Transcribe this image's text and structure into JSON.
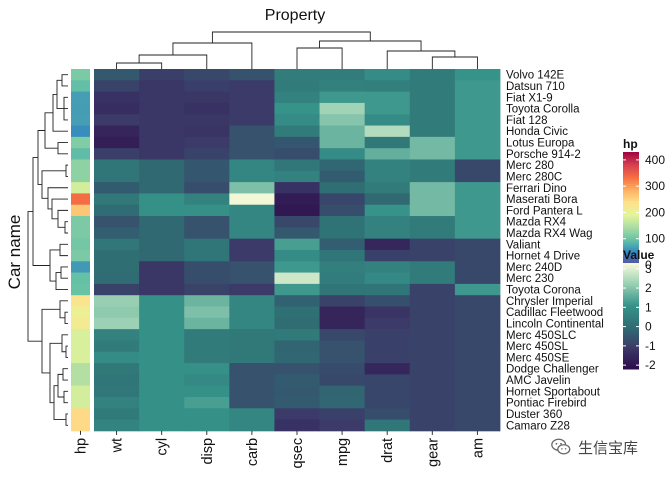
{
  "chart_data": {
    "type": "heatmap",
    "title": "Property",
    "ylabel": "Car name",
    "columns": [
      "wt",
      "cyl",
      "disp",
      "carb",
      "qsec",
      "mpg",
      "drat",
      "gear",
      "am"
    ],
    "annotation_column": "hp",
    "rows": [
      {
        "name": "Volvo 142E",
        "hp": 109,
        "values": [
          -0.45,
          -1.0,
          -0.8,
          -0.6,
          0.45,
          0.45,
          0.9,
          0.4,
          1.1
        ]
      },
      {
        "name": "Datsun 710",
        "hp": 93,
        "values": [
          -0.9,
          -1.2,
          -1.0,
          -1.1,
          0.4,
          0.55,
          0.5,
          0.4,
          1.2
        ]
      },
      {
        "name": "Fiat X1-9",
        "hp": 66,
        "values": [
          -1.3,
          -1.2,
          -1.2,
          -1.1,
          0.6,
          1.2,
          1.2,
          0.4,
          1.2
        ]
      },
      {
        "name": "Toyota Corolla",
        "hp": 65,
        "values": [
          -1.4,
          -1.2,
          -1.3,
          -1.1,
          1.1,
          2.3,
          1.2,
          0.4,
          1.2
        ]
      },
      {
        "name": "Fiat 128",
        "hp": 66,
        "values": [
          -1.1,
          -1.2,
          -1.2,
          -1.1,
          0.9,
          2.0,
          0.9,
          0.4,
          1.2
        ]
      },
      {
        "name": "Honda Civic",
        "hp": 52,
        "values": [
          -1.6,
          -1.2,
          -1.25,
          -0.6,
          0.4,
          1.7,
          2.5,
          0.4,
          1.2
        ]
      },
      {
        "name": "Lotus Europa",
        "hp": 113,
        "values": [
          -1.75,
          -1.2,
          -1.1,
          -0.6,
          -0.5,
          1.7,
          0.3,
          1.8,
          1.2
        ]
      },
      {
        "name": "Porsche 914-2",
        "hp": 91,
        "values": [
          -1.0,
          -1.2,
          -0.9,
          -0.6,
          -0.7,
          0.9,
          1.6,
          1.8,
          1.2
        ]
      },
      {
        "name": "Merc 280",
        "hp": 123,
        "values": [
          0.2,
          -0.1,
          -0.5,
          0.7,
          0.25,
          -0.15,
          0.6,
          0.4,
          -0.8
        ]
      },
      {
        "name": "Merc 280C",
        "hp": 123,
        "values": [
          0.2,
          -0.1,
          -0.5,
          0.7,
          0.6,
          -0.4,
          0.6,
          0.4,
          -0.8
        ]
      },
      {
        "name": "Ferrari Dino",
        "hp": 175,
        "values": [
          -0.4,
          -0.1,
          -0.7,
          1.9,
          -1.3,
          0.0,
          0.4,
          1.8,
          1.2
        ]
      },
      {
        "name": "Maserati Bora",
        "hp": 335,
        "values": [
          0.3,
          1.0,
          0.6,
          3.2,
          -1.8,
          -0.85,
          -0.1,
          1.8,
          1.2
        ]
      },
      {
        "name": "Ford Pantera L",
        "hp": 264,
        "values": [
          -0.05,
          1.0,
          1.0,
          0.7,
          -1.9,
          -0.7,
          1.1,
          1.8,
          1.2
        ]
      },
      {
        "name": "Mazda RX4",
        "hp": 110,
        "values": [
          -0.6,
          -0.1,
          -0.6,
          0.7,
          -0.8,
          0.15,
          0.6,
          0.4,
          1.2
        ]
      },
      {
        "name": "Mazda RX4 Wag",
        "hp": 110,
        "values": [
          -0.35,
          -0.1,
          -0.6,
          0.7,
          -0.45,
          0.15,
          0.6,
          0.4,
          1.2
        ]
      },
      {
        "name": "Valiant",
        "hp": 105,
        "values": [
          0.25,
          -0.1,
          0.2,
          -1.1,
          1.3,
          -0.35,
          -1.55,
          -0.9,
          -0.8
        ]
      },
      {
        "name": "Hornet 4 Drive",
        "hp": 110,
        "values": [
          -0.0,
          -0.1,
          0.2,
          -1.1,
          0.9,
          0.2,
          -0.95,
          -0.9,
          -0.8
        ]
      },
      {
        "name": "Merc 240D",
        "hp": 62,
        "values": [
          -0.0,
          -1.2,
          -0.7,
          -0.6,
          1.2,
          0.5,
          0.6,
          0.4,
          -0.8
        ]
      },
      {
        "name": "Merc 230",
        "hp": 95,
        "values": [
          -0.05,
          -1.2,
          -0.7,
          -0.6,
          2.8,
          0.45,
          0.8,
          0.4,
          -0.8
        ]
      },
      {
        "name": "Toyota Corona",
        "hp": 97,
        "values": [
          -0.9,
          -1.2,
          -0.9,
          -1.1,
          1.2,
          0.2,
          0.2,
          -0.9,
          1.2
        ]
      },
      {
        "name": "Chrysler Imperial",
        "hp": 230,
        "values": [
          2.2,
          1.0,
          1.7,
          0.7,
          -0.25,
          -0.9,
          -0.65,
          -0.9,
          -0.8
        ]
      },
      {
        "name": "Cadillac Fleetwood",
        "hp": 205,
        "values": [
          2.1,
          1.0,
          1.9,
          0.7,
          0.07,
          -1.6,
          -1.25,
          -0.9,
          -0.8
        ]
      },
      {
        "name": "Lincoln Continental",
        "hp": 215,
        "values": [
          2.25,
          1.0,
          1.7,
          0.7,
          -0.02,
          -1.6,
          -1.1,
          -0.9,
          -0.8
        ]
      },
      {
        "name": "Merc 450SLC",
        "hp": 180,
        "values": [
          0.6,
          1.0,
          0.4,
          0.3,
          0.35,
          -0.8,
          -0.95,
          -0.9,
          -0.8
        ]
      },
      {
        "name": "Merc 450SL",
        "hp": 180,
        "values": [
          0.4,
          1.0,
          0.4,
          0.3,
          -0.2,
          -0.6,
          -0.95,
          -0.9,
          -0.8
        ]
      },
      {
        "name": "Merc 450SE",
        "hp": 180,
        "values": [
          0.9,
          1.0,
          0.4,
          0.3,
          -0.15,
          -0.6,
          -0.95,
          -0.9,
          -0.8
        ]
      },
      {
        "name": "Dodge Challenger",
        "hp": 150,
        "values": [
          0.3,
          1.0,
          1.0,
          -0.6,
          -0.6,
          -0.75,
          -1.55,
          -0.9,
          -0.8
        ]
      },
      {
        "name": "AMC Javelin",
        "hp": 150,
        "values": [
          0.2,
          1.0,
          0.8,
          -0.6,
          -0.4,
          -0.8,
          -0.85,
          -0.9,
          -0.8
        ]
      },
      {
        "name": "Hornet Sportabout",
        "hp": 175,
        "values": [
          0.25,
          1.0,
          1.0,
          -0.6,
          -0.45,
          -0.2,
          -0.85,
          -0.9,
          -0.8
        ]
      },
      {
        "name": "Pontiac Firebird",
        "hp": 175,
        "values": [
          0.6,
          1.0,
          1.3,
          -0.6,
          -0.4,
          -0.15,
          -0.85,
          -0.9,
          -0.8
        ]
      },
      {
        "name": "Duster 360",
        "hp": 245,
        "values": [
          0.35,
          1.0,
          1.0,
          0.7,
          -1.1,
          -0.95,
          -0.7,
          -0.9,
          -0.8
        ]
      },
      {
        "name": "Camaro Z28",
        "hp": 245,
        "values": [
          0.65,
          1.0,
          1.0,
          0.7,
          -1.3,
          -1.1,
          0.25,
          -0.9,
          -0.8
        ]
      }
    ],
    "hp_legend": {
      "title": "hp",
      "ticks": [
        400,
        300,
        200,
        100,
        0
      ],
      "range": [
        0,
        430
      ]
    },
    "value_legend": {
      "title": "Value",
      "ticks": [
        3,
        2,
        1,
        0,
        -1,
        -2
      ],
      "range": [
        -2.2,
        3.3
      ]
    },
    "hp_colors": [
      "#5e4fa2",
      "#3288bd",
      "#66c2a5",
      "#abdda4",
      "#e6f598",
      "#fee08b",
      "#fdae61",
      "#f46d43",
      "#d53e4f",
      "#9e0142"
    ],
    "value_colors": [
      "#2d0b4a",
      "#3b3a68",
      "#2f6e73",
      "#36938a",
      "#98cfb3",
      "#fbfbda"
    ]
  },
  "watermark": {
    "icon": "wechat-icon",
    "text": "生信宝库"
  }
}
